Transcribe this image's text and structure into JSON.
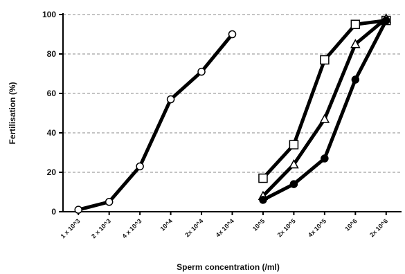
{
  "chart_data": {
    "type": "line",
    "title": "",
    "xlabel": "Sperm concentration (/ml)",
    "ylabel": "Fertilisation (%)",
    "ylim": [
      0,
      100
    ],
    "yticks": [
      0,
      20,
      40,
      60,
      80,
      100
    ],
    "categories": [
      "1 x 10^3",
      "2 x 10^3",
      "4 x 10^3",
      "10^4",
      "2x 10^4",
      "4x 10^4",
      "10^5",
      "2x 10^5",
      "4x 10^5",
      "10^6",
      "2x 10^6"
    ],
    "grid": true,
    "series": [
      {
        "marker": "open-circle",
        "values": [
          1,
          5,
          23,
          57,
          71,
          90,
          null,
          null,
          null,
          null,
          null
        ]
      },
      {
        "marker": "open-square",
        "values": [
          null,
          null,
          null,
          null,
          null,
          null,
          17,
          34,
          77,
          95,
          97
        ]
      },
      {
        "marker": "open-triangle",
        "values": [
          null,
          null,
          null,
          null,
          null,
          null,
          8,
          24,
          47,
          85,
          98
        ]
      },
      {
        "marker": "filled-circle",
        "values": [
          null,
          null,
          null,
          null,
          null,
          null,
          6,
          14,
          27,
          67,
          97
        ]
      }
    ]
  }
}
